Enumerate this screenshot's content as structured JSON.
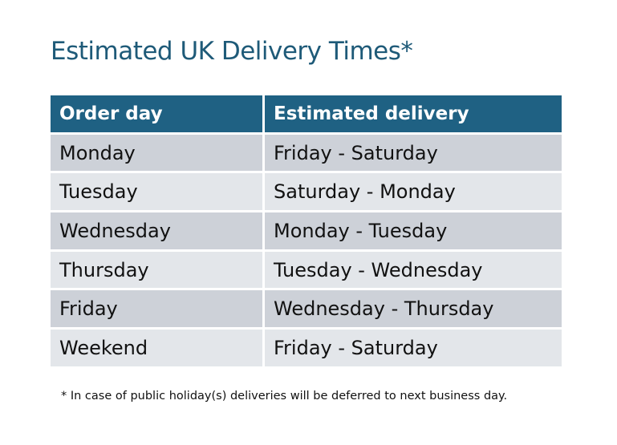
{
  "title": "Estimated UK Delivery Times*",
  "table": {
    "headers": [
      "Order day",
      "Estimated delivery"
    ],
    "rows": [
      [
        "Monday",
        "Friday - Saturday"
      ],
      [
        "Tuesday",
        "Saturday - Monday"
      ],
      [
        "Wednesday",
        "Monday - Tuesday"
      ],
      [
        "Thursday",
        "Tuesday - Wednesday"
      ],
      [
        "Friday",
        "Wednesday - Thursday"
      ],
      [
        "Weekend",
        "Friday - Saturday"
      ]
    ]
  },
  "footnote": "* In case of public holiday(s) deliveries will be deferred to next business day.",
  "colors": {
    "title": "#1e5a78",
    "header": "#1f6183",
    "row_odd": "#cdd1d8",
    "row_even": "#e3e6ea"
  }
}
